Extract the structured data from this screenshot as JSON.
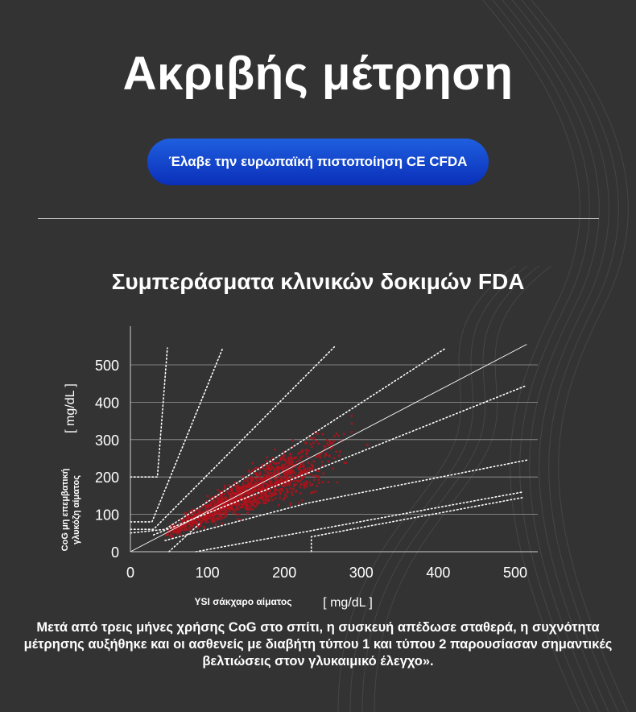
{
  "hero": {
    "title": "Ακριβής μέτρηση"
  },
  "badge": {
    "label": "Έλαβε την ευρωπαϊκή πιστοποίηση CE CFDA"
  },
  "section": {
    "title": "Συμπεράσματα κλινικών δοκιμών FDA"
  },
  "caption": {
    "text": "Μετά από τρεις μήνες χρήσης CoG στο σπίτι, η συσκευή απέδωσε σταθερά, η συχνότητα μέτρησης αυξήθηκε και οι ασθενείς με διαβήτη τύπου 1 και τύπου 2 παρουσίασαν σημαντικές βελτιώσεις στον γλυκαιμικό έλεγχο»."
  },
  "colors": {
    "background": "#333333",
    "badge": "#0a2fb8",
    "points": "#b3121b",
    "reference_lines": "#ffffff"
  },
  "chart_data": {
    "type": "scatter",
    "title": "",
    "xlabel": "YSI σάκχαρο αίματος",
    "xunit": "[ mg/dL ]",
    "ylabel": "CoG μη επεμβατική γλυκόζη αίματος",
    "yunit": "[ mg/dL ]",
    "xlim": [
      0,
      530
    ],
    "ylim": [
      0,
      550
    ],
    "xticks": [
      "0",
      "100",
      "200",
      "300",
      "400",
      "500"
    ],
    "yticks": [
      "0",
      "100",
      "200",
      "300",
      "400",
      "500"
    ],
    "grid": "horizontal",
    "point_cloud": {
      "color": "#b3121b",
      "x_range": [
        45,
        380
      ],
      "trend": "y ≈ x",
      "note": "scatter cloud of clinical readings concentrated along identity line"
    },
    "reference_lines": [
      {
        "name": "identity",
        "style": "solid",
        "points": [
          [
            0,
            0
          ],
          [
            515,
            555
          ]
        ]
      },
      {
        "style": "dotted",
        "points": [
          [
            0,
            200
          ],
          [
            35,
            200
          ],
          [
            48,
            545
          ]
        ]
      },
      {
        "style": "dotted",
        "points": [
          [
            0,
            80
          ],
          [
            28,
            80
          ],
          [
            120,
            545
          ]
        ]
      },
      {
        "style": "dotted",
        "points": [
          [
            0,
            60
          ],
          [
            30,
            60
          ],
          [
            265,
            548
          ]
        ]
      },
      {
        "style": "dotted",
        "points": [
          [
            0,
            50
          ],
          [
            45,
            60
          ],
          [
            410,
            545
          ]
        ]
      },
      {
        "style": "dotted",
        "points": [
          [
            30,
            45
          ],
          [
            515,
            445
          ]
        ]
      },
      {
        "style": "dotted",
        "points": [
          [
            45,
            30
          ],
          [
            230,
            130
          ],
          [
            515,
            245
          ]
        ]
      },
      {
        "style": "dotted",
        "points": [
          [
            50,
            0
          ],
          [
            90,
            75
          ]
        ]
      },
      {
        "style": "dotted",
        "points": [
          [
            85,
            0
          ],
          [
            510,
            160
          ]
        ]
      },
      {
        "style": "dotted",
        "points": [
          [
            235,
            0
          ],
          [
            235,
            40
          ],
          [
            510,
            145
          ]
        ]
      }
    ]
  }
}
